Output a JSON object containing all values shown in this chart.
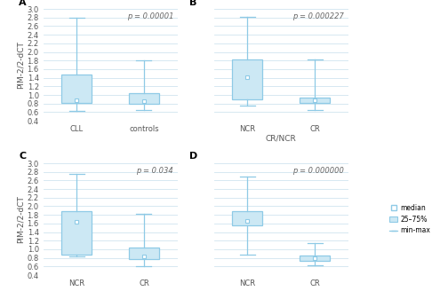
{
  "panels": [
    {
      "label": "A",
      "p_value": "p = 0.00001",
      "xlabel": "",
      "xtick_labels": [
        "CLL",
        "controls"
      ],
      "boxes": [
        {
          "median": 0.87,
          "q1": 0.82,
          "q3": 1.47,
          "whislo": 0.63,
          "whishi": 2.8
        },
        {
          "median": 0.85,
          "q1": 0.8,
          "q3": 1.05,
          "whislo": 0.65,
          "whishi": 1.8
        }
      ]
    },
    {
      "label": "B",
      "p_value": "p = 0.000227",
      "xlabel": "CR/NCR",
      "xtick_labels": [
        "NCR",
        "CR"
      ],
      "boxes": [
        {
          "median": 1.42,
          "q1": 0.9,
          "q3": 1.82,
          "whislo": 0.75,
          "whishi": 2.82
        },
        {
          "median": 0.87,
          "q1": 0.82,
          "q3": 0.93,
          "whislo": 0.65,
          "whishi": 1.82
        }
      ]
    },
    {
      "label": "C",
      "p_value": "p = 0.034",
      "xlabel": "",
      "xtick_labels": [
        "NCR",
        "CR"
      ],
      "boxes": [
        {
          "median": 1.63,
          "q1": 0.87,
          "q3": 1.88,
          "whislo": 0.83,
          "whishi": 2.75
        },
        {
          "median": 0.83,
          "q1": 0.78,
          "q3": 1.05,
          "whislo": 0.6,
          "whishi": 1.82
        }
      ]
    },
    {
      "label": "D",
      "p_value": "p = 0.000000",
      "xlabel": "",
      "xtick_labels": [
        "NCR",
        "CR"
      ],
      "boxes": [
        {
          "median": 1.65,
          "q1": 1.55,
          "q3": 1.88,
          "whislo": 0.88,
          "whishi": 2.7
        },
        {
          "median": 0.8,
          "q1": 0.73,
          "q3": 0.85,
          "whislo": 0.62,
          "whishi": 1.15
        }
      ]
    }
  ],
  "box_color": "#8ecae6",
  "box_facecolor": "#cce8f4",
  "ylabel": "PIM-2/2-dCT",
  "ylim": [
    0.4,
    3.0
  ],
  "yticks": [
    0.4,
    0.6,
    0.8,
    1.0,
    1.2,
    1.4,
    1.6,
    1.8,
    2.0,
    2.2,
    2.4,
    2.6,
    2.8,
    3.0
  ],
  "grid_color": "#d0e4ef",
  "bg_color": "#ffffff",
  "label_fontsize": 6.5,
  "tick_fontsize": 6,
  "pval_fontsize": 6
}
